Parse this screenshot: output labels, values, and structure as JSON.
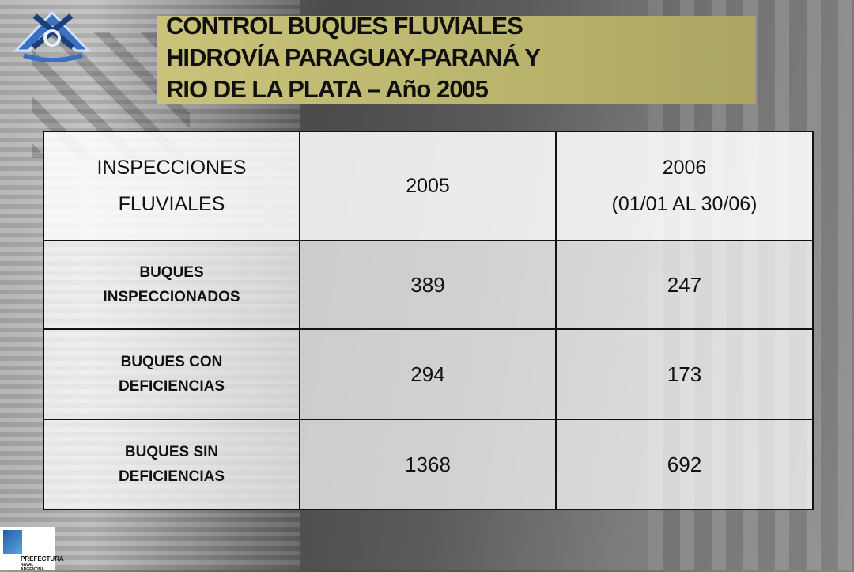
{
  "title": {
    "line1": "CONTROL BUQUES FLUVIALES",
    "line2": "HIDROVÍA PARAGUAY-PARANÁ Y",
    "line3": "RIO DE LA PLATA – Año 2005"
  },
  "table": {
    "header": {
      "label_line1": "INSPECCIONES",
      "label_line2": "FLUVIALES",
      "col1": "2005",
      "col2_line1": "2006",
      "col2_line2": "(01/01 AL 30/06)"
    },
    "rows": [
      {
        "label_line1": "BUQUES",
        "label_line2": "INSPECCIONADOS",
        "v2005": "389",
        "v2006": "247"
      },
      {
        "label_line1": "BUQUES  CON",
        "label_line2": "DEFICIENCIAS",
        "v2005": "294",
        "v2006": "173"
      },
      {
        "label_line1": "BUQUES  SIN",
        "label_line2": "DEFICIENCIAS",
        "v2005": "1368",
        "v2006": "692"
      }
    ]
  },
  "logo": {
    "name": "PREFECTURA",
    "subtitle": "NAVAL ARGENTINA",
    "icon": "anchor-emblem-icon"
  },
  "emblem": {
    "icon": "anchor-emblem-icon"
  },
  "colors": {
    "title_background": "#bdb76b",
    "logo_blue": "#1d5fa8"
  }
}
